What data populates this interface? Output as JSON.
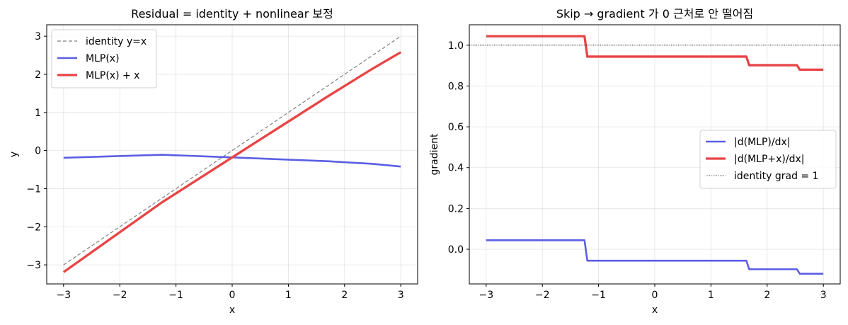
{
  "chart_data": [
    {
      "type": "line",
      "title": "Residual = identity + nonlinear 보정",
      "xlabel": "x",
      "ylabel": "y",
      "xlim": [
        -3.3,
        3.3
      ],
      "ylim": [
        -3.5,
        3.3
      ],
      "xticks": [
        -3,
        -2,
        -1,
        0,
        1,
        2,
        3
      ],
      "yticks": [
        -3,
        -2,
        -1,
        0,
        1,
        2,
        3
      ],
      "xtick_labels": [
        "−3",
        "−2",
        "−1",
        "0",
        "1",
        "2",
        "3"
      ],
      "ytick_labels": [
        "−3",
        "−2",
        "−1",
        "0",
        "1",
        "2",
        "3"
      ],
      "grid": true,
      "legend_position": "upper-left",
      "series": [
        {
          "name": "identity y=x",
          "color": "#808080",
          "style": "dashed",
          "width": 1.2,
          "x": [
            -3,
            3
          ],
          "y": [
            -3,
            3
          ]
        },
        {
          "name": "MLP(x)",
          "color": "#5b5fe3",
          "style": "solid",
          "width": 2.6,
          "x": [
            -3,
            -1.25,
            0,
            1.7,
            2.5,
            3
          ],
          "y": [
            -0.19,
            -0.11,
            -0.18,
            -0.28,
            -0.35,
            -0.42
          ]
        },
        {
          "name": "MLP(x) + x",
          "color": "#e84444",
          "style": "solid",
          "width": 3.3,
          "x": [
            -3,
            -1.25,
            0,
            1.7,
            2.5,
            3
          ],
          "y": [
            -3.19,
            -1.36,
            -0.18,
            1.42,
            2.15,
            2.58
          ]
        }
      ]
    },
    {
      "type": "line",
      "title": "Skip → gradient 가 0 근처로 안 떨어짐",
      "xlabel": "x",
      "ylabel": "gradient",
      "xlim": [
        -3.3,
        3.3
      ],
      "ylim": [
        -0.17,
        1.1
      ],
      "xticks": [
        -3,
        -2,
        -1,
        0,
        1,
        2,
        3
      ],
      "yticks": [
        0.0,
        0.2,
        0.4,
        0.6,
        0.8,
        1.0
      ],
      "xtick_labels": [
        "−3",
        "−2",
        "−1",
        "0",
        "1",
        "2",
        "3"
      ],
      "ytick_labels": [
        "0.0",
        "0.2",
        "0.4",
        "0.6",
        "0.8",
        "1.0"
      ],
      "grid": true,
      "legend_position": "center-right",
      "series": [
        {
          "name": "|d(MLP)/dx|",
          "color": "#5b5fe3",
          "style": "solid",
          "width": 2.6,
          "x": [
            -3,
            -1.25,
            -1.2,
            1.63,
            1.68,
            2.53,
            2.58,
            3
          ],
          "y": [
            0.044,
            0.044,
            -0.056,
            -0.056,
            -0.098,
            -0.098,
            -0.12,
            -0.12
          ]
        },
        {
          "name": "|d(MLP+x)/dx|",
          "color": "#e84444",
          "style": "solid",
          "width": 3.3,
          "x": [
            -3,
            -1.25,
            -1.2,
            1.63,
            1.68,
            2.53,
            2.58,
            3
          ],
          "y": [
            1.044,
            1.044,
            0.944,
            0.944,
            0.902,
            0.902,
            0.88,
            0.88
          ]
        },
        {
          "name": "identity grad = 1",
          "color": "#000000",
          "style": "dotted",
          "width": 0.8,
          "x": [
            -3.3,
            3.3
          ],
          "y": [
            1.0,
            1.0
          ]
        }
      ]
    }
  ]
}
